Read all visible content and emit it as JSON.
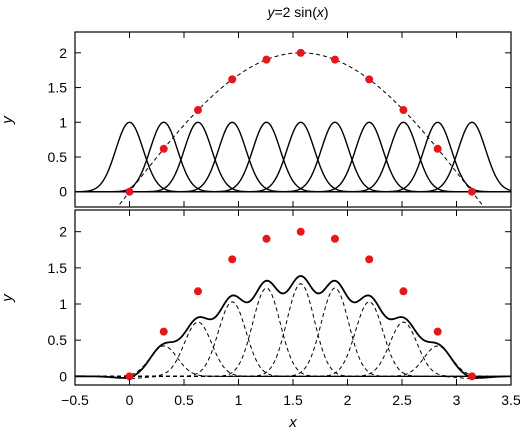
{
  "title": {
    "prefix": "y",
    "middle": "=2 sin(",
    "var": "x",
    "suffix": ")"
  },
  "colors": {
    "points": "#e8161b",
    "lines": "#000000"
  },
  "chart_data": [
    {
      "type": "line",
      "panel": "top",
      "xlabel": "",
      "ylabel": "y",
      "xlim": [
        -0.5,
        3.5
      ],
      "ylim": [
        -0.22,
        2.3
      ],
      "yticks": [
        0,
        0.5,
        1,
        1.5,
        2
      ],
      "ytick_labels": [
        "0",
        "0.5",
        "1",
        "1.5",
        "2"
      ],
      "basis_centers": [
        0,
        0.3142,
        0.6283,
        0.9425,
        1.2566,
        1.5708,
        1.885,
        2.1991,
        2.5133,
        2.8274,
        3.1416
      ],
      "basis_width": 0.1257,
      "series": [
        {
          "style": "solid",
          "amplitude": 1
        },
        {
          "style": "dashed",
          "function": "2 sin(x)"
        }
      ],
      "points": {
        "x": [
          0,
          0.3142,
          0.6283,
          0.9425,
          1.2566,
          1.5708,
          1.885,
          2.1991,
          2.5133,
          2.8274,
          3.1416
        ],
        "y": [
          0,
          0.618,
          1.176,
          1.618,
          1.902,
          2.0,
          1.902,
          1.618,
          1.176,
          0.618,
          0
        ]
      }
    },
    {
      "type": "line",
      "panel": "bottom",
      "xlabel": "x",
      "ylabel": "y",
      "xlim": [
        -0.5,
        3.5
      ],
      "ylim": [
        -0.12,
        2.3
      ],
      "xticks": [
        -0.5,
        0,
        0.5,
        1,
        1.5,
        2,
        2.5,
        3,
        3.5
      ],
      "xtick_labels": [
        "−0.5",
        "0",
        "0.5",
        "1",
        "1.5",
        "2",
        "2.5",
        "3",
        "3.5"
      ],
      "yticks": [
        0,
        0.5,
        1,
        1.5,
        2
      ],
      "ytick_labels": [
        "0",
        "0.5",
        "1",
        "1.5",
        "2"
      ],
      "basis_centers": [
        0,
        0.3142,
        0.6283,
        0.9425,
        1.2566,
        1.5708,
        1.885,
        2.1991,
        2.5133,
        2.8274,
        3.1416
      ],
      "basis_width": 0.1257,
      "weights": [
        -0.03,
        0.42,
        0.75,
        1.03,
        1.22,
        1.28,
        1.22,
        1.03,
        0.75,
        0.42,
        -0.03
      ],
      "series": [
        {
          "style": "dashed",
          "component": "weighted basis functions"
        },
        {
          "style": "solid",
          "component": "sum of weighted basis functions"
        }
      ],
      "points": {
        "x": [
          0,
          0.3142,
          0.6283,
          0.9425,
          1.2566,
          1.5708,
          1.885,
          2.1991,
          2.5133,
          2.8274,
          3.1416
        ],
        "y": [
          0,
          0.618,
          1.176,
          1.618,
          1.902,
          2.0,
          1.902,
          1.618,
          1.176,
          0.618,
          0
        ]
      }
    }
  ]
}
